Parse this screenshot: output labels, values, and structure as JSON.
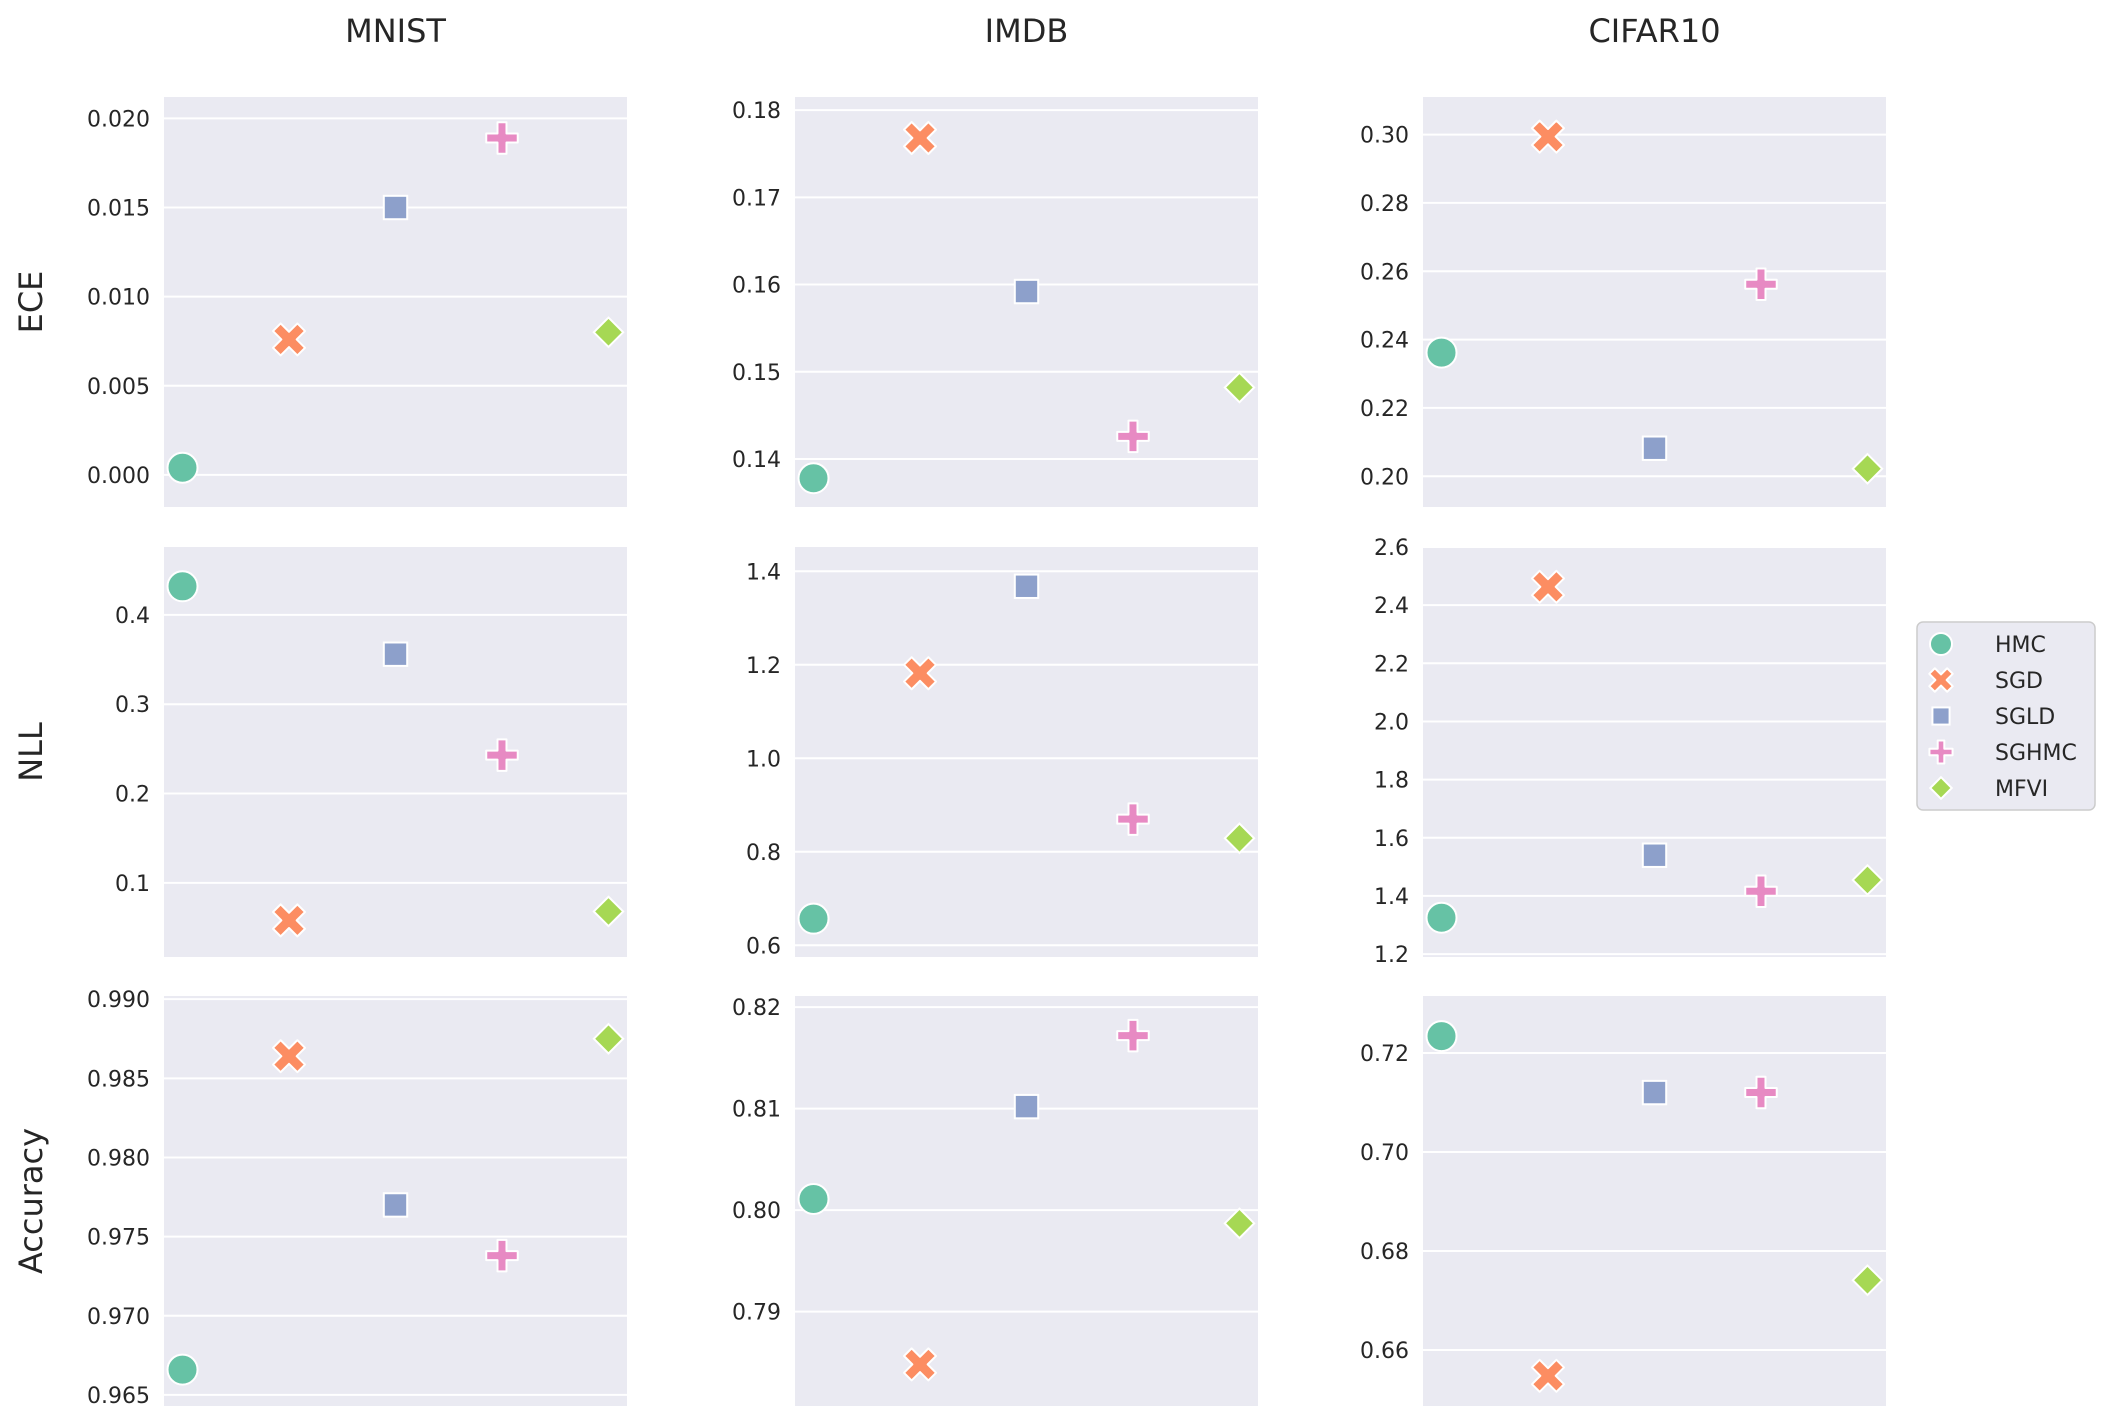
{
  "colors": {
    "HMC": "#66c2a5",
    "SGD": "#fc8d62",
    "SGLD": "#8da0cb",
    "SGHMC": "#e78ac3",
    "MFVI": "#a6d854",
    "panel_bg": "#eaeaf2",
    "grid": "#ffffff",
    "text": "#262626"
  },
  "legend": {
    "placement": "center-right",
    "items": [
      {
        "label": "HMC",
        "marker": "circle"
      },
      {
        "label": "SGD",
        "marker": "x"
      },
      {
        "label": "SGLD",
        "marker": "square"
      },
      {
        "label": "SGHMC",
        "marker": "plus"
      },
      {
        "label": "MFVI",
        "marker": "diamond"
      }
    ]
  },
  "chart_data": [
    {
      "type": "scatter",
      "title": "MNIST",
      "ylabel": "ECE",
      "ylim": [
        -0.0018,
        0.0212
      ],
      "ticks": [
        "0.000",
        "0.005",
        "0.010",
        "0.015",
        "0.020"
      ],
      "tick_values": [
        0,
        0.005,
        0.01,
        0.015,
        0.02
      ],
      "grid": true,
      "points": [
        {
          "name": "HMC",
          "value": 0.0004
        },
        {
          "name": "SGD",
          "value": 0.0076
        },
        {
          "name": "SGLD",
          "value": 0.015
        },
        {
          "name": "SGHMC",
          "value": 0.0189
        },
        {
          "name": "MFVI",
          "value": 0.008
        }
      ]
    },
    {
      "type": "scatter",
      "title": "IMDB",
      "ylabel": "",
      "ylim": [
        0.1345,
        0.1815
      ],
      "ticks": [
        "0.14",
        "0.15",
        "0.16",
        "0.17",
        "0.18"
      ],
      "tick_values": [
        0.14,
        0.15,
        0.16,
        0.17,
        0.18
      ],
      "grid": true,
      "points": [
        {
          "name": "HMC",
          "value": 0.1378
        },
        {
          "name": "SGD",
          "value": 0.1768
        },
        {
          "name": "SGLD",
          "value": 0.1592
        },
        {
          "name": "SGHMC",
          "value": 0.1426
        },
        {
          "name": "MFVI",
          "value": 0.1482
        }
      ]
    },
    {
      "type": "scatter",
      "title": "CIFAR10",
      "ylabel": "",
      "ylim": [
        0.191,
        0.311
      ],
      "ticks": [
        "0.20",
        "0.22",
        "0.24",
        "0.26",
        "0.28",
        "0.30"
      ],
      "tick_values": [
        0.2,
        0.22,
        0.24,
        0.26,
        0.28,
        0.3
      ],
      "grid": true,
      "points": [
        {
          "name": "HMC",
          "value": 0.2362
        },
        {
          "name": "SGD",
          "value": 0.2994
        },
        {
          "name": "SGLD",
          "value": 0.2082
        },
        {
          "name": "SGHMC",
          "value": 0.2562
        },
        {
          "name": "MFVI",
          "value": 0.2022
        }
      ]
    },
    {
      "type": "scatter",
      "title": "",
      "ylabel": "NLL",
      "ylim": [
        0.017,
        0.476
      ],
      "ticks": [
        "0.1",
        "0.2",
        "0.3",
        "0.4"
      ],
      "tick_values": [
        0.1,
        0.2,
        0.3,
        0.4
      ],
      "grid": true,
      "points": [
        {
          "name": "HMC",
          "value": 0.432
        },
        {
          "name": "SGD",
          "value": 0.058
        },
        {
          "name": "SGLD",
          "value": 0.356
        },
        {
          "name": "SGHMC",
          "value": 0.243
        },
        {
          "name": "MFVI",
          "value": 0.068
        }
      ]
    },
    {
      "type": "scatter",
      "title": "",
      "ylabel": "",
      "ylim": [
        0.575,
        1.452
      ],
      "ticks": [
        "0.6",
        "0.8",
        "1.0",
        "1.2",
        "1.4"
      ],
      "tick_values": [
        0.6,
        0.8,
        1.0,
        1.2,
        1.4
      ],
      "grid": true,
      "points": [
        {
          "name": "HMC",
          "value": 0.657
        },
        {
          "name": "SGD",
          "value": 1.182
        },
        {
          "name": "SGLD",
          "value": 1.368
        },
        {
          "name": "SGHMC",
          "value": 0.87
        },
        {
          "name": "MFVI",
          "value": 0.829
        }
      ]
    },
    {
      "type": "scatter",
      "title": "",
      "ylabel": "",
      "ylim": [
        1.19,
        2.6
      ],
      "ticks": [
        "1.2",
        "1.4",
        "1.6",
        "1.8",
        "2.0",
        "2.2",
        "2.4",
        "2.6"
      ],
      "tick_values": [
        1.2,
        1.4,
        1.6,
        1.8,
        2.0,
        2.2,
        2.4,
        2.6
      ],
      "grid": true,
      "points": [
        {
          "name": "HMC",
          "value": 1.325
        },
        {
          "name": "SGD",
          "value": 2.463
        },
        {
          "name": "SGLD",
          "value": 1.54
        },
        {
          "name": "SGHMC",
          "value": 1.416
        },
        {
          "name": "MFVI",
          "value": 1.455
        }
      ]
    },
    {
      "type": "scatter",
      "title": "",
      "ylabel": "Accuracy",
      "ylim": [
        0.9643,
        0.9902
      ],
      "ticks": [
        "0.965",
        "0.970",
        "0.975",
        "0.980",
        "0.985",
        "0.990"
      ],
      "tick_values": [
        0.965,
        0.97,
        0.975,
        0.98,
        0.985,
        0.99
      ],
      "grid": true,
      "points": [
        {
          "name": "HMC",
          "value": 0.9666
        },
        {
          "name": "SGD",
          "value": 0.9864
        },
        {
          "name": "SGLD",
          "value": 0.977
        },
        {
          "name": "SGHMC",
          "value": 0.9738
        },
        {
          "name": "MFVI",
          "value": 0.9875
        }
      ]
    },
    {
      "type": "scatter",
      "title": "",
      "ylabel": "",
      "ylim": [
        0.7807,
        0.8211
      ],
      "ticks": [
        "0.79",
        "0.80",
        "0.81",
        "0.82"
      ],
      "tick_values": [
        0.79,
        0.8,
        0.81,
        0.82
      ],
      "grid": true,
      "points": [
        {
          "name": "HMC",
          "value": 0.8011
        },
        {
          "name": "SGD",
          "value": 0.7848
        },
        {
          "name": "SGLD",
          "value": 0.8102
        },
        {
          "name": "SGHMC",
          "value": 0.8172
        },
        {
          "name": "MFVI",
          "value": 0.7987
        }
      ]
    },
    {
      "type": "scatter",
      "title": "",
      "ylabel": "",
      "ylim": [
        0.6487,
        0.7315
      ],
      "ticks": [
        "0.66",
        "0.68",
        "0.70",
        "0.72"
      ],
      "tick_values": [
        0.66,
        0.68,
        0.7,
        0.72
      ],
      "grid": true,
      "points": [
        {
          "name": "HMC",
          "value": 0.7234
        },
        {
          "name": "SGD",
          "value": 0.6548
        },
        {
          "name": "SGLD",
          "value": 0.712
        },
        {
          "name": "SGHMC",
          "value": 0.712
        },
        {
          "name": "MFVI",
          "value": 0.6741
        }
      ]
    }
  ]
}
